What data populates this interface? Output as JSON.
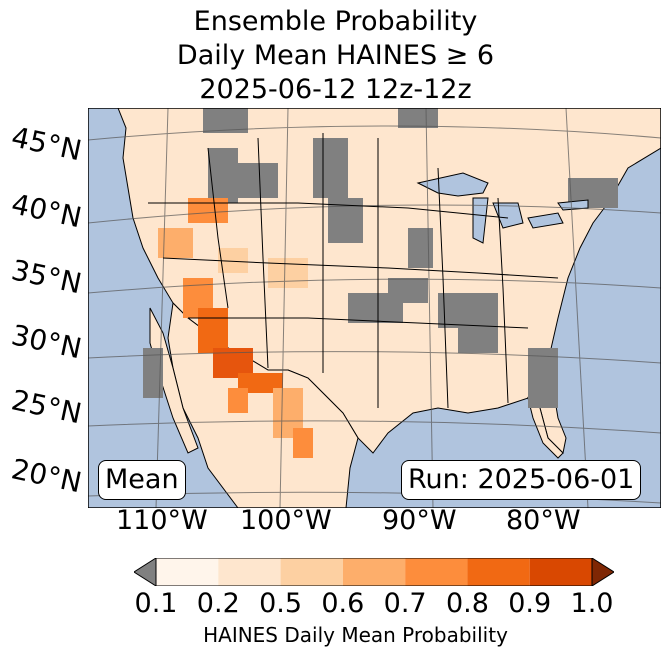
{
  "title_lines": [
    "Ensemble Probability",
    "Daily Mean HAINES ≥ 6",
    "2025-06-12 12z-12z"
  ],
  "lat_labels": [
    "45°N",
    "40°N",
    "35°N",
    "30°N",
    "25°N",
    "20°N"
  ],
  "lon_labels": [
    "110°W",
    "100°W",
    "90°W",
    "80°W"
  ],
  "stat_box": "Mean",
  "run_box": "Run: 2025-06-01",
  "colorbar": {
    "ticks": [
      "0.1",
      "0.2",
      "0.5",
      "0.6",
      "0.7",
      "0.8",
      "0.9",
      "1.0"
    ],
    "colors": [
      "#fff5eb",
      "#fee6ce",
      "#fdd0a2",
      "#fdae6b",
      "#fd8d3c",
      "#f16913",
      "#d94801",
      "#a63603"
    ],
    "under_color": "#808080",
    "over_color": "#7f2704",
    "label": "HAINES Daily Mean Probability"
  },
  "map_colors": {
    "ocean": "#b0c4de",
    "land_low": "#fff5eb",
    "land_base": "#fee6ce",
    "missing": "#808080",
    "high": "#e6550d"
  }
}
